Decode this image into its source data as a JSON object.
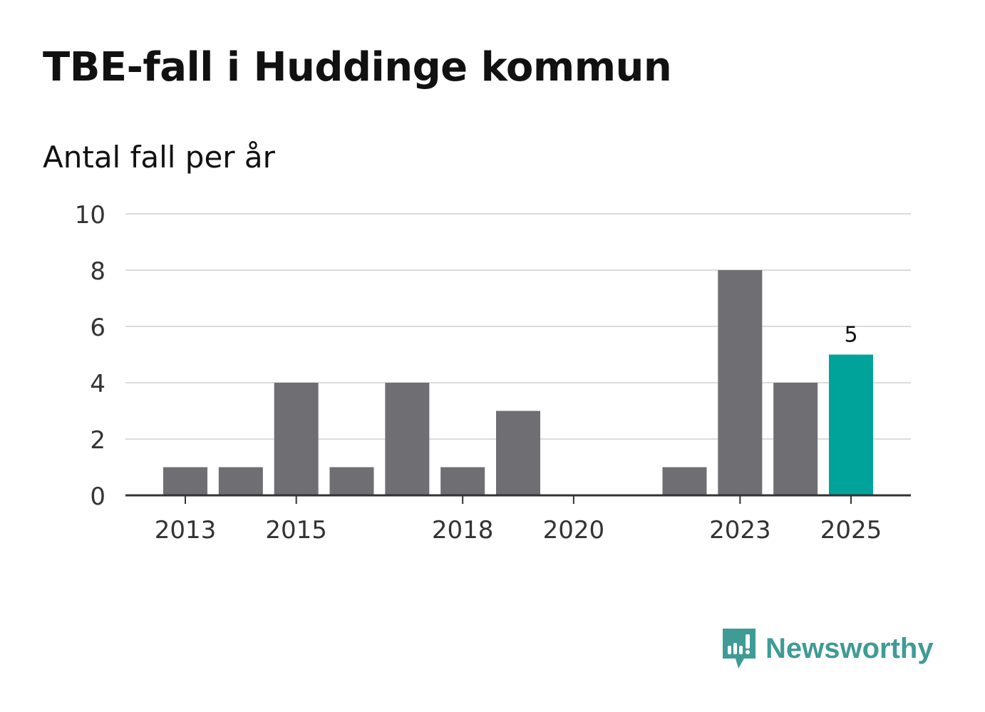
{
  "chart_data": {
    "type": "bar",
    "title": "TBE-fall i Huddinge kommun",
    "subtitle": "Antal fall per år",
    "xlabel": "",
    "ylabel": "Antal fall per år",
    "categories": [
      "2013",
      "2014",
      "2015",
      "2016",
      "2017",
      "2018",
      "2019",
      "2020",
      "2021",
      "2022",
      "2023",
      "2024",
      "2025"
    ],
    "values": [
      1,
      1,
      4,
      1,
      4,
      1,
      3,
      0,
      0,
      1,
      8,
      4,
      5
    ],
    "x_tick_labels": [
      "2013",
      "2015",
      "2018",
      "2020",
      "2023",
      "2025"
    ],
    "y_ticks": [
      "0",
      "2",
      "4",
      "6",
      "8",
      "10"
    ],
    "ylim": [
      0,
      10
    ],
    "grid": true,
    "highlight": {
      "category": "2025",
      "label": "5",
      "color": "#00a39a"
    },
    "bar_color": "#6f6e73"
  },
  "brand": {
    "name": "Newsworthy",
    "color": "#3f9b95"
  }
}
